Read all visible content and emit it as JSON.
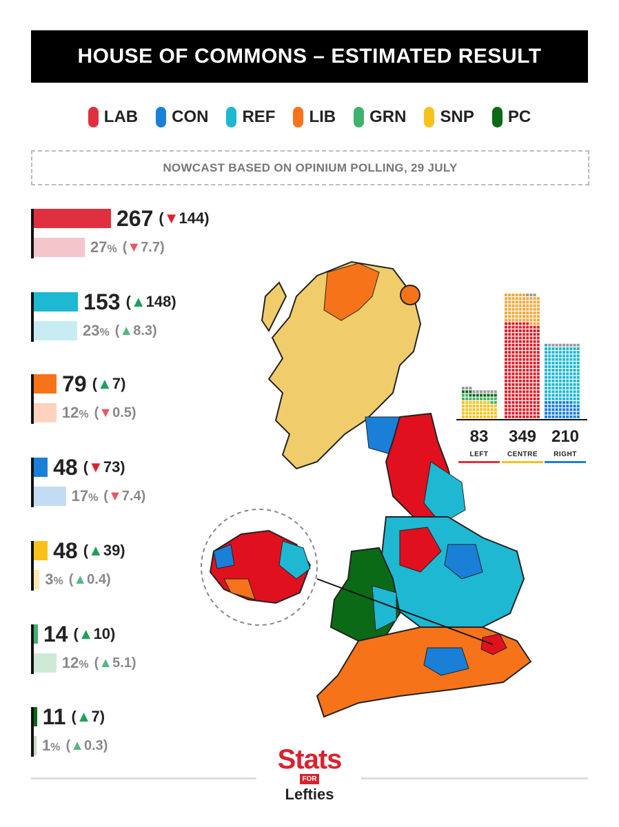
{
  "title": "HOUSE OF COMMONS – ESTIMATED RESULT",
  "subtitle": "NOWCAST BASED ON OPINIUM POLLING, 29 JULY",
  "legend": [
    {
      "label": "LAB",
      "color": "#e0303f"
    },
    {
      "label": "CON",
      "color": "#1a7fd6"
    },
    {
      "label": "REF",
      "color": "#1eb8d3"
    },
    {
      "label": "LIB",
      "color": "#f7731a"
    },
    {
      "label": "GRN",
      "color": "#3fb26b"
    },
    {
      "label": "SNP",
      "color": "#f9c21a"
    },
    {
      "label": "PC",
      "color": "#0b6a16"
    }
  ],
  "chart_data": [
    {
      "type": "bar",
      "categories": [
        "LAB",
        "REF",
        "LIB",
        "CON",
        "SNP",
        "GRN",
        "PC"
      ],
      "series": [
        {
          "values": [
            267,
            153,
            79,
            48,
            48,
            14,
            11
          ]
        },
        {
          "values": [
            27,
            23,
            12,
            17,
            3,
            12,
            1
          ]
        }
      ],
      "seat_changes": [
        "▼144",
        "▲148",
        "▲7",
        "▼73",
        "▲39",
        "▲10",
        "▲7"
      ],
      "seat_change_dir": [
        "down",
        "up",
        "up",
        "down",
        "up",
        "up",
        "up"
      ],
      "vote_changes": [
        "▼7.7",
        "▲8.3",
        "▼0.5",
        "▼7.4",
        "▲0.4",
        "▲5.1",
        "▲0.3"
      ],
      "vote_change_dir": [
        "down",
        "up",
        "down",
        "down",
        "up",
        "up",
        "up"
      ],
      "seat_labels": [
        "267",
        "153",
        "79",
        "48",
        "48",
        "14",
        "11"
      ],
      "vote_labels": [
        "27",
        "23",
        "12",
        "17",
        "3",
        "12",
        "1"
      ],
      "vote_unit": "%",
      "colors": [
        "#e0303f",
        "#1eb8d3",
        "#f7731a",
        "#1a7fd6",
        "#f9c21a",
        "#3fb26b",
        "#0b6a16"
      ],
      "light_colors": [
        "#f4c6cc",
        "#c7ecf3",
        "#fdd3bd",
        "#c2dcf3",
        "#fde7b3",
        "#cde9d6",
        "#c8d8c8"
      ]
    },
    {
      "type": "bar",
      "categories": [
        "LEFT",
        "CENTRE",
        "RIGHT"
      ],
      "values": [
        83,
        349,
        210
      ],
      "stack_composition": [
        {
          "GRN": 14,
          "SNP": 48,
          "PC": 11,
          "other": 10
        },
        {
          "LAB": 267,
          "LIB": 79,
          "other": 3
        },
        {
          "CON": 48,
          "REF": 153,
          "other": 9
        }
      ],
      "line_colors": [
        "#e0303f",
        "#f9c21a",
        "#1a7fd6"
      ]
    }
  ],
  "right_chart": {
    "labels": [
      "83",
      "349",
      "210"
    ],
    "names": [
      "LEFT",
      "CENTRE",
      "RIGHT"
    ]
  },
  "map_colors": {
    "lab": "#e0101f",
    "con": "#1a7fd6",
    "ref": "#1eb8d3",
    "lib": "#f7731a",
    "snp": "#f0cd6a",
    "pc": "#0b6a16",
    "grn": "#3fb26b"
  },
  "logo": {
    "stats": "Stats",
    "for": "FOR",
    "lefties": "Lefties"
  }
}
